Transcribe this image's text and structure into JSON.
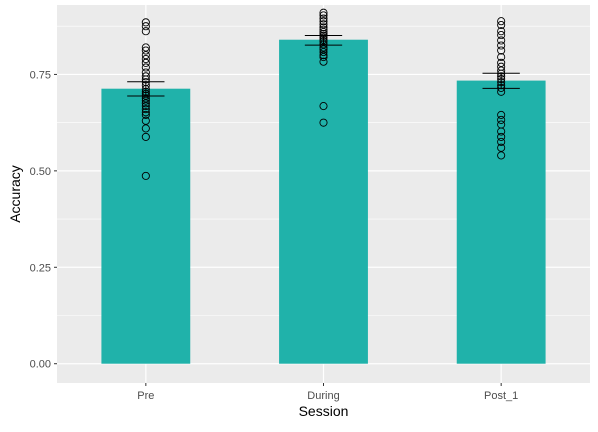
{
  "chart_data": {
    "type": "bar",
    "title": "",
    "xlabel": "Session",
    "ylabel": "Accuracy",
    "categories": [
      "Pre",
      "During",
      "Post_1"
    ],
    "ylim": [
      -0.05,
      0.93
    ],
    "yticks": [
      0.0,
      0.25,
      0.5,
      0.75
    ],
    "ytick_labels": [
      "0.00",
      "0.25",
      "0.50",
      "0.75"
    ],
    "grid": true,
    "legend": "none",
    "bar_color": "#20B2AA",
    "panel_color": "#EBEBEB",
    "grid_color": "#FFFFFF",
    "point_color": "#000000",
    "bars": [
      {
        "category": "Pre",
        "mean": 0.713,
        "se_low": 0.694,
        "se_high": 0.731
      },
      {
        "category": "During",
        "mean": 0.84,
        "se_low": 0.826,
        "se_high": 0.851
      },
      {
        "category": "Post_1",
        "mean": 0.734,
        "se_low": 0.714,
        "se_high": 0.753
      }
    ],
    "points": [
      {
        "category": "Pre",
        "values": [
          0.885,
          0.875,
          0.862,
          0.82,
          0.812,
          0.8,
          0.79,
          0.78,
          0.768,
          0.755,
          0.745,
          0.737,
          0.73,
          0.722,
          0.712,
          0.705,
          0.7,
          0.695,
          0.688,
          0.682,
          0.675,
          0.668,
          0.66,
          0.652,
          0.645,
          0.63,
          0.61,
          0.588,
          0.487
        ]
      },
      {
        "category": "During",
        "values": [
          0.91,
          0.903,
          0.895,
          0.888,
          0.88,
          0.872,
          0.866,
          0.86,
          0.855,
          0.85,
          0.845,
          0.84,
          0.835,
          0.828,
          0.82,
          0.815,
          0.808,
          0.8,
          0.795,
          0.783,
          0.668,
          0.625
        ]
      },
      {
        "category": "Post_1",
        "values": [
          0.888,
          0.878,
          0.862,
          0.852,
          0.838,
          0.825,
          0.812,
          0.795,
          0.78,
          0.77,
          0.76,
          0.752,
          0.745,
          0.738,
          0.73,
          0.722,
          0.715,
          0.705,
          0.645,
          0.632,
          0.62,
          0.602,
          0.588,
          0.575,
          0.56,
          0.54
        ]
      }
    ]
  }
}
